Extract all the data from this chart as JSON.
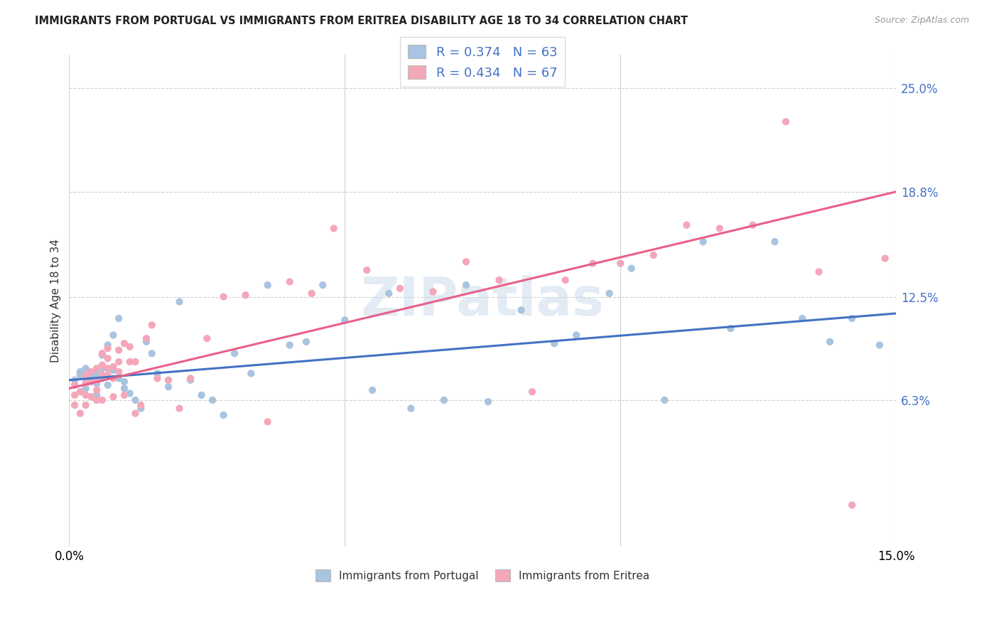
{
  "title": "IMMIGRANTS FROM PORTUGAL VS IMMIGRANTS FROM ERITREA DISABILITY AGE 18 TO 34 CORRELATION CHART",
  "source": "Source: ZipAtlas.com",
  "ylabel": "Disability Age 18 to 34",
  "xlim": [
    0.0,
    0.15
  ],
  "ylim": [
    -0.025,
    0.27
  ],
  "ytick_labels": [
    "6.3%",
    "12.5%",
    "18.8%",
    "25.0%"
  ],
  "ytick_values": [
    0.063,
    0.125,
    0.188,
    0.25
  ],
  "portugal_color": "#a8c4e0",
  "eritrea_color": "#f4a7b9",
  "portugal_line_color": "#4472c4",
  "eritrea_line_color": "#e8608a",
  "R_portugal": 0.374,
  "N_portugal": 63,
  "R_eritrea": 0.434,
  "N_eritrea": 67,
  "watermark": "ZIPatlas",
  "background_color": "#ffffff",
  "grid_color": "#d0d0d0",
  "portugal_scatter_x": [
    0.001,
    0.001,
    0.002,
    0.002,
    0.002,
    0.003,
    0.003,
    0.003,
    0.004,
    0.004,
    0.004,
    0.005,
    0.005,
    0.005,
    0.006,
    0.006,
    0.006,
    0.007,
    0.007,
    0.008,
    0.008,
    0.009,
    0.009,
    0.01,
    0.01,
    0.011,
    0.012,
    0.013,
    0.014,
    0.015,
    0.016,
    0.018,
    0.02,
    0.022,
    0.024,
    0.026,
    0.028,
    0.03,
    0.033,
    0.036,
    0.04,
    0.043,
    0.046,
    0.05,
    0.055,
    0.058,
    0.062,
    0.068,
    0.072,
    0.076,
    0.082,
    0.088,
    0.092,
    0.098,
    0.102,
    0.108,
    0.115,
    0.12,
    0.128,
    0.133,
    0.138,
    0.142,
    0.147
  ],
  "portugal_scatter_y": [
    0.075,
    0.072,
    0.078,
    0.068,
    0.08,
    0.076,
    0.07,
    0.082,
    0.074,
    0.077,
    0.065,
    0.073,
    0.079,
    0.066,
    0.082,
    0.09,
    0.076,
    0.096,
    0.072,
    0.102,
    0.081,
    0.112,
    0.076,
    0.074,
    0.07,
    0.067,
    0.063,
    0.058,
    0.098,
    0.091,
    0.079,
    0.071,
    0.122,
    0.075,
    0.066,
    0.063,
    0.054,
    0.091,
    0.079,
    0.132,
    0.096,
    0.098,
    0.132,
    0.111,
    0.069,
    0.127,
    0.058,
    0.063,
    0.132,
    0.062,
    0.117,
    0.097,
    0.102,
    0.127,
    0.142,
    0.063,
    0.158,
    0.106,
    0.158,
    0.112,
    0.098,
    0.112,
    0.096
  ],
  "eritrea_scatter_x": [
    0.001,
    0.001,
    0.001,
    0.002,
    0.002,
    0.003,
    0.003,
    0.003,
    0.003,
    0.004,
    0.004,
    0.004,
    0.005,
    0.005,
    0.005,
    0.005,
    0.006,
    0.006,
    0.006,
    0.006,
    0.007,
    0.007,
    0.007,
    0.007,
    0.008,
    0.008,
    0.008,
    0.009,
    0.009,
    0.009,
    0.01,
    0.01,
    0.011,
    0.011,
    0.012,
    0.012,
    0.013,
    0.014,
    0.015,
    0.016,
    0.018,
    0.02,
    0.022,
    0.025,
    0.028,
    0.032,
    0.036,
    0.04,
    0.044,
    0.048,
    0.054,
    0.06,
    0.066,
    0.072,
    0.078,
    0.084,
    0.09,
    0.095,
    0.1,
    0.106,
    0.112,
    0.118,
    0.124,
    0.13,
    0.136,
    0.142,
    0.148
  ],
  "eritrea_scatter_y": [
    0.072,
    0.066,
    0.06,
    0.055,
    0.068,
    0.06,
    0.066,
    0.073,
    0.078,
    0.065,
    0.074,
    0.08,
    0.063,
    0.069,
    0.075,
    0.082,
    0.078,
    0.084,
    0.091,
    0.063,
    0.078,
    0.082,
    0.088,
    0.094,
    0.065,
    0.076,
    0.083,
    0.08,
    0.086,
    0.093,
    0.066,
    0.097,
    0.086,
    0.095,
    0.086,
    0.055,
    0.06,
    0.1,
    0.108,
    0.076,
    0.075,
    0.058,
    0.076,
    0.1,
    0.125,
    0.126,
    0.05,
    0.134,
    0.127,
    0.166,
    0.141,
    0.13,
    0.128,
    0.146,
    0.135,
    0.068,
    0.135,
    0.145,
    0.145,
    0.15,
    0.168,
    0.166,
    0.168,
    0.23,
    0.14,
    0.0,
    0.148
  ]
}
